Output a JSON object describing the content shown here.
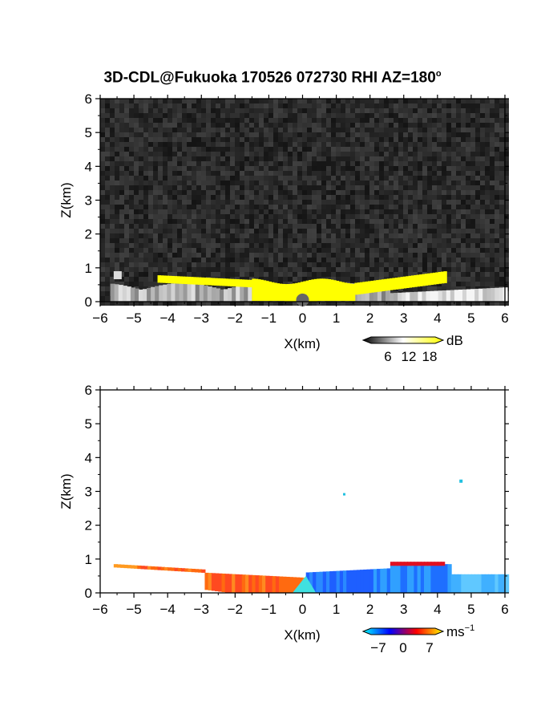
{
  "title": "3D-CDL@Fukuoka 170526 072730 RHI AZ=180",
  "title_superscript": "o",
  "chart_data": [
    {
      "type": "heatmap",
      "variable": "backscatter",
      "xlabel": "X(km)",
      "ylabel": "Z(km)",
      "xlim": [
        -6,
        6
      ],
      "ylim": [
        0,
        6
      ],
      "xticks": [
        "−6",
        "−5",
        "−4",
        "−3",
        "−2",
        "−1",
        "0",
        "1",
        "2",
        "3",
        "4",
        "5",
        "6"
      ],
      "yticks": [
        "0",
        "1",
        "2",
        "3",
        "4",
        "5",
        "6"
      ],
      "background": "grayscale noise",
      "colorbar": {
        "unit": "dB",
        "ticks": [
          "6",
          "12",
          "18"
        ],
        "colors": [
          "#000000",
          "#ffffff",
          "#ffff00"
        ]
      },
      "highlight_color": "#ffff00"
    },
    {
      "type": "heatmap",
      "variable": "doppler velocity",
      "xlabel": "X(km)",
      "ylabel": "Z(km)",
      "xlim": [
        -6,
        6
      ],
      "ylim": [
        0,
        6
      ],
      "xticks": [
        "−6",
        "−5",
        "−4",
        "−3",
        "−2",
        "−1",
        "0",
        "1",
        "2",
        "3",
        "4",
        "5",
        "6"
      ],
      "yticks": [
        "0",
        "1",
        "2",
        "3",
        "4",
        "5",
        "6"
      ],
      "colorbar": {
        "unit": "ms",
        "unit_superscript": "−1",
        "ticks": [
          "−7",
          "0",
          "7"
        ],
        "range": [
          -7,
          7
        ],
        "colors": [
          "#00ffff",
          "#0000ff",
          "#ff0000",
          "#ffff00"
        ]
      },
      "features": [
        {
          "region": "x −5.5 to 0",
          "sign": "positive (receding)",
          "color": "#ff6a10"
        },
        {
          "region": "x 0 to 6",
          "sign": "negative (approaching)",
          "color": "#1e6fff"
        }
      ]
    }
  ]
}
